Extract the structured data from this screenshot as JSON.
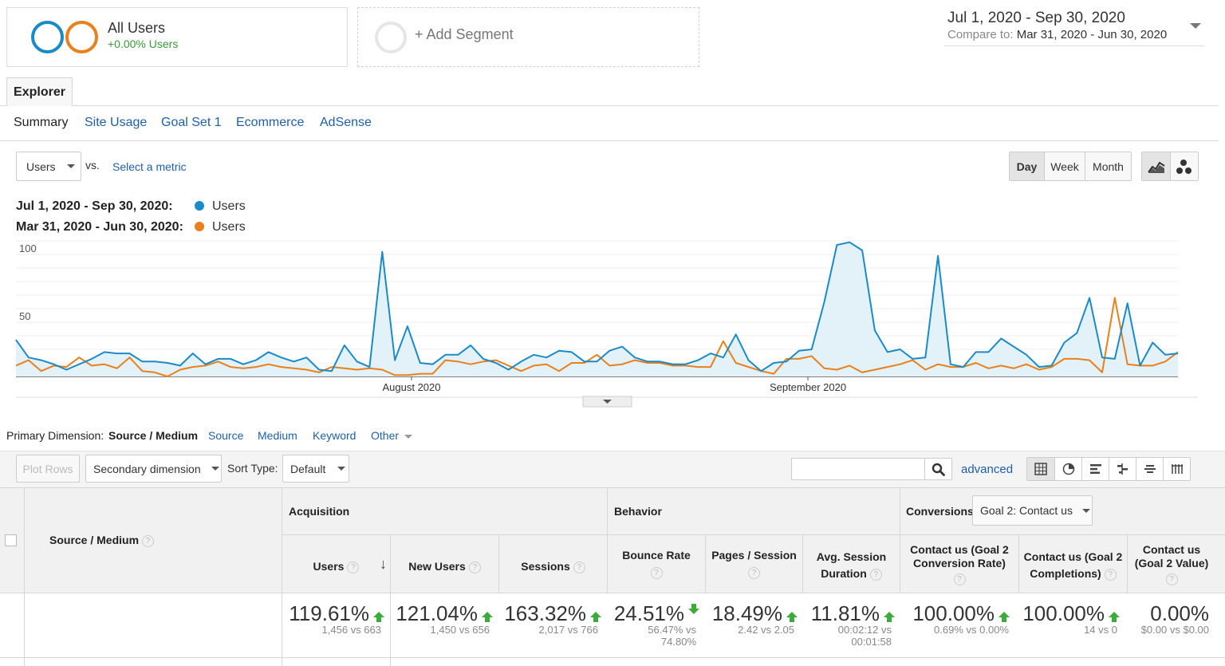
{
  "segments": {
    "all_users": {
      "title": "All Users",
      "subtitle": "+0.00% Users"
    },
    "add_segment": "+ Add Segment"
  },
  "date_range": {
    "main": "Jul 1, 2020 - Sep 30, 2020",
    "compare_label": "Compare to:",
    "compare_range": "Mar 31, 2020 - Jun 30, 2020"
  },
  "tabs": {
    "explorer": "Explorer"
  },
  "subtabs": [
    "Summary",
    "Site Usage",
    "Goal Set 1",
    "Ecommerce",
    "AdSense"
  ],
  "metric_controls": {
    "metric": "Users",
    "vs": "vs.",
    "select_metric": "Select a metric",
    "granularity": [
      "Day",
      "Week",
      "Month"
    ],
    "active_granularity": "Day"
  },
  "legend": [
    {
      "range": "Jul 1, 2020 - Sep 30, 2020:",
      "metric": "Users",
      "color": "#1a8bc7"
    },
    {
      "range": "Mar 31, 2020 - Jun 30, 2020:",
      "metric": "Users",
      "color": "#e8801c"
    }
  ],
  "chart_data": {
    "type": "area",
    "y_ticks": [
      "100",
      "50"
    ],
    "ylim": [
      0,
      100
    ],
    "x_labels": [
      "August 2020",
      "September 2020"
    ],
    "series": [
      {
        "name": "Users",
        "color": "#1a8bc7",
        "fill": true,
        "values": [
          27,
          14,
          12,
          9,
          5,
          9,
          13,
          18,
          17,
          17,
          11,
          11,
          10,
          8,
          17,
          9,
          13,
          13,
          9,
          12,
          18,
          14,
          11,
          14,
          5,
          4,
          23,
          11,
          7,
          92,
          12,
          37,
          10,
          9,
          16,
          16,
          23,
          13,
          10,
          5,
          11,
          16,
          14,
          19,
          18,
          11,
          11,
          19,
          22,
          14,
          11,
          11,
          9,
          9,
          12,
          17,
          14,
          31,
          12,
          4,
          10,
          11,
          19,
          20,
          55,
          97,
          99,
          93,
          34,
          18,
          20,
          13,
          14,
          89,
          9,
          7,
          18,
          18,
          28,
          22,
          16,
          7,
          8,
          25,
          32,
          58,
          14,
          13,
          54,
          8,
          25,
          16,
          17
        ]
      },
      {
        "name": "Users",
        "color": "#e8801c",
        "fill": false,
        "values": [
          8,
          12,
          4,
          8,
          7,
          14,
          8,
          9,
          6,
          14,
          4,
          3,
          0,
          5,
          7,
          8,
          11,
          7,
          6,
          7,
          9,
          7,
          6,
          5,
          3,
          7,
          6,
          5,
          6,
          5,
          1,
          1,
          2,
          2,
          12,
          11,
          9,
          11,
          12,
          8,
          4,
          8,
          9,
          4,
          10,
          10,
          16,
          8,
          9,
          12,
          10,
          10,
          8,
          8,
          7,
          7,
          26,
          10,
          7,
          4,
          2,
          13,
          13,
          15,
          6,
          5,
          8,
          3,
          5,
          7,
          9,
          12,
          5,
          9,
          7,
          7,
          10,
          6,
          8,
          6,
          9,
          5,
          7,
          13,
          13,
          12,
          3,
          58,
          9,
          8,
          8,
          11,
          18
        ]
      }
    ]
  },
  "primary_dimension": {
    "label": "Primary Dimension:",
    "active": "Source / Medium",
    "options": [
      "Source",
      "Medium",
      "Keyword",
      "Other"
    ]
  },
  "toolbar": {
    "plot_rows": "Plot Rows",
    "secondary_dimension": "Secondary dimension",
    "sort_type_label": "Sort Type:",
    "sort_type": "Default",
    "search_placeholder": "",
    "advanced": "advanced"
  },
  "table": {
    "dimension_header": "Source / Medium",
    "groups": {
      "acquisition": "Acquisition",
      "behavior": "Behavior",
      "conversions": "Conversions"
    },
    "goal_select": "Goal 2: Contact us",
    "columns": {
      "users": "Users",
      "new_users": "New Users",
      "sessions": "Sessions",
      "bounce_rate": "Bounce Rate",
      "pages_session": "Pages / Session",
      "avg_duration_1": "Avg. Session",
      "avg_duration_2": "Duration",
      "conv_rate_1": "Contact us (Goal 2",
      "conv_rate_2": "Conversion Rate)",
      "completions_1": "Contact us (Goal 2",
      "completions_2": "Completions)",
      "value_1": "Contact us",
      "value_2": "(Goal 2 Value)"
    },
    "totals": {
      "users": {
        "pct": "119.61%",
        "cmp": "1,456 vs 663"
      },
      "new_users": {
        "pct": "121.04%",
        "cmp": "1,450 vs 656"
      },
      "sessions": {
        "pct": "163.32%",
        "cmp": "2,017 vs 766"
      },
      "bounce_rate": {
        "pct": "24.51%",
        "cmp1": "56.47% vs",
        "cmp2": "74.80%"
      },
      "pages_session": {
        "pct": "18.49%",
        "cmp": "2.42 vs 2.05"
      },
      "avg_duration": {
        "pct": "11.81%",
        "cmp1": "00:02:12 vs",
        "cmp2": "00:01:58"
      },
      "conv_rate": {
        "pct": "100.00%",
        "cmp": "0.69% vs 0.00%"
      },
      "completions": {
        "pct": "100.00%",
        "cmp": "14 vs 0"
      },
      "value": {
        "pct": "0.00%",
        "cmp": "$0.00 vs $0.00"
      }
    }
  }
}
